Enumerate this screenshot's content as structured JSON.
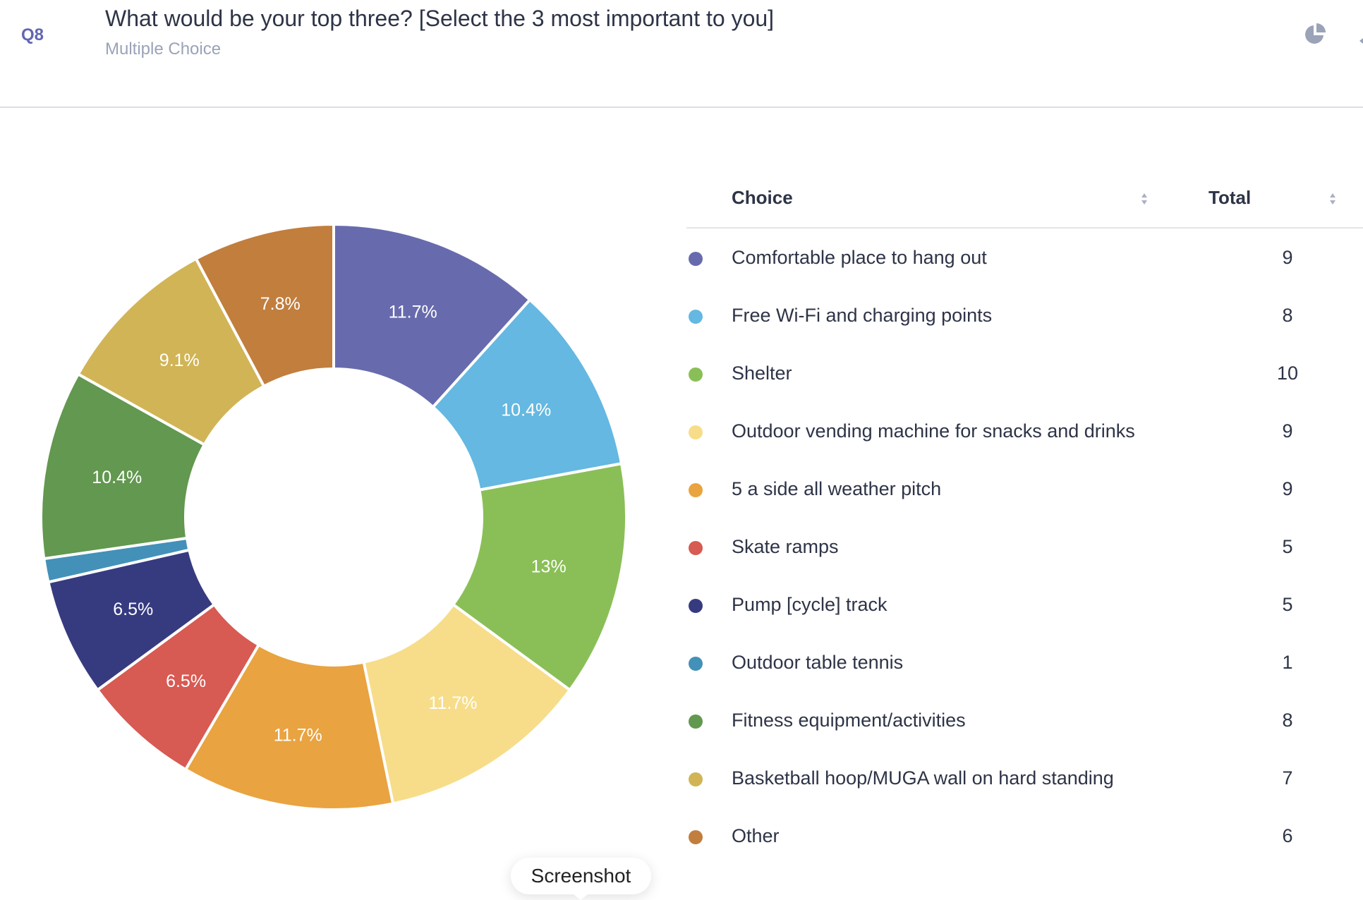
{
  "question": {
    "number": "Q8",
    "title": "What would be your top three? [Select the 3 most important to you]",
    "type": "Multiple Choice",
    "chart_icon": "pie-chart-icon"
  },
  "table": {
    "headers": {
      "choice": "Choice",
      "total": "Total"
    },
    "sort_icon": "sort-arrows-icon"
  },
  "tooltip": {
    "label": "Screenshot"
  },
  "chart_data": {
    "type": "pie",
    "donut": true,
    "title": "What would be your top three? [Select the 3 most important to you]",
    "categories": [
      "Comfortable place to hang out",
      "Free Wi-Fi and charging points",
      "Shelter",
      "Outdoor vending machine for snacks and drinks",
      "5 a side all weather pitch",
      "Skate ramps",
      "Pump [cycle] track",
      "Outdoor table tennis",
      "Fitness equipment/activities",
      "Basketball hoop/MUGA wall on hard standing",
      "Other"
    ],
    "values": [
      9,
      8,
      10,
      9,
      9,
      5,
      5,
      1,
      8,
      7,
      6
    ],
    "data_labels": [
      "11.7%",
      "10.4%",
      "13%",
      "11.7%",
      "11.7%",
      "6.5%",
      "6.5%",
      "",
      "10.4%",
      "9.1%",
      "7.8%"
    ],
    "colors": [
      "#676bad",
      "#64b8e1",
      "#8abf57",
      "#f7dd8a",
      "#e9a340",
      "#d75a53",
      "#363b80",
      "#4391b8",
      "#62984f",
      "#d1b456",
      "#c17e3d"
    ],
    "legend": "right",
    "start_angle": "12 o'clock",
    "direction": "clockwise"
  }
}
